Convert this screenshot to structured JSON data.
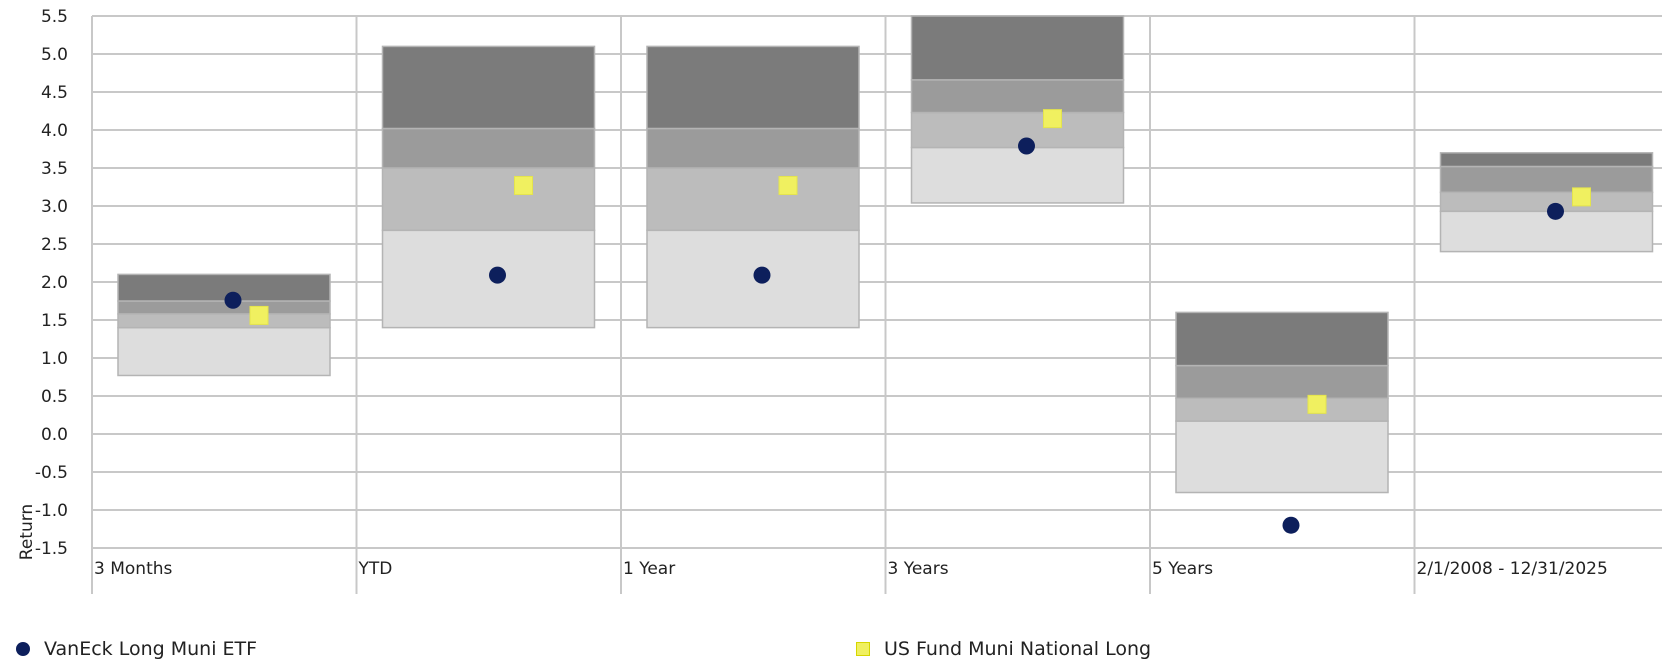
{
  "chart_data": {
    "type": "box-percentile",
    "ylabel": "Return",
    "ylim": [
      -1.5,
      5.5
    ],
    "ytick_step": 0.5,
    "grid": true,
    "legend_position": "bottom",
    "categories": [
      "3 Months",
      "YTD",
      "1 Year",
      "3 Years",
      "5 Years",
      "2/1/2008 - 12/31/2025"
    ],
    "band_colors": [
      "#dddddd",
      "#bcbcbc",
      "#9b9b9b",
      "#7b7b7b"
    ],
    "bands": [
      [
        0.77,
        1.4,
        1.58,
        1.75,
        2.1
      ],
      [
        1.4,
        2.68,
        3.5,
        4.02,
        5.1
      ],
      [
        1.4,
        2.68,
        3.5,
        4.02,
        5.1
      ],
      [
        3.04,
        3.77,
        4.23,
        4.66,
        5.5
      ],
      [
        -0.77,
        0.17,
        0.47,
        0.9,
        1.6
      ],
      [
        2.4,
        2.93,
        3.18,
        3.52,
        3.7
      ]
    ],
    "series": [
      {
        "name": "VanEck Long Muni ETF",
        "marker": "circle",
        "color": "#0d1f5c",
        "values": [
          1.76,
          2.09,
          2.09,
          3.79,
          -1.2,
          2.93
        ]
      },
      {
        "name": "US Fund Muni National Long",
        "marker": "square",
        "color": "#f0f060",
        "values": [
          1.56,
          3.27,
          3.27,
          4.15,
          0.39,
          3.12
        ]
      }
    ]
  }
}
